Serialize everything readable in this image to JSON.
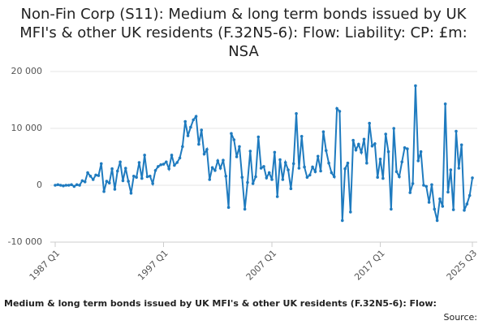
{
  "chart_data": {
    "type": "line",
    "title": "Non-Fin Corp (S11): Medium & long term bonds issued by UK MFI's & other UK residents (F.32N5-6): Flow: Liability: CP: £m: NSA",
    "footer": "Medium & long term bonds issued by UK MFI's & other UK residents (F.32N5-6): Flow:",
    "source": "Source:",
    "categories": [
      "1987 Q1",
      null,
      null,
      null,
      null,
      null,
      null,
      null,
      null,
      null,
      null,
      null,
      null,
      null,
      null,
      null,
      null,
      null,
      null,
      null,
      null,
      null,
      null,
      null,
      null,
      null,
      null,
      null,
      null,
      null,
      null,
      null,
      null,
      null,
      null,
      null,
      null,
      null,
      null,
      null,
      "1997 Q1",
      null,
      null,
      null,
      null,
      null,
      null,
      null,
      null,
      null,
      null,
      null,
      null,
      null,
      null,
      null,
      null,
      null,
      null,
      null,
      null,
      null,
      null,
      null,
      null,
      null,
      null,
      null,
      null,
      null,
      null,
      null,
      null,
      null,
      null,
      null,
      null,
      null,
      null,
      null,
      "2007 Q1",
      null,
      null,
      null,
      null,
      null,
      null,
      null,
      null,
      null,
      null,
      null,
      null,
      null,
      null,
      null,
      null,
      null,
      null,
      null,
      null,
      null,
      null,
      null,
      null,
      null,
      null,
      null,
      null,
      null,
      null,
      null,
      null,
      null,
      null,
      null,
      null,
      null,
      null,
      null,
      "2017 Q1",
      null,
      null,
      null,
      null,
      null,
      null,
      null,
      null,
      null,
      null,
      null,
      null,
      null,
      null,
      null,
      null,
      null,
      null,
      null,
      null,
      null,
      null,
      null,
      null,
      null,
      null,
      null,
      null,
      null,
      null,
      null,
      null,
      null,
      "2025 Q3"
    ],
    "series": [
      {
        "name": "Medium & long term bonds issued by UK MFI's & other UK residents (F.32N5-6): Flow",
        "color": "#1f7bbf",
        "values": [
          0,
          100,
          0,
          -100,
          0,
          0,
          100,
          -200,
          100,
          0,
          800,
          600,
          2200,
          1600,
          1000,
          1800,
          1700,
          3800,
          -1100,
          700,
          400,
          2900,
          -700,
          2500,
          4100,
          800,
          3000,
          700,
          -1400,
          1600,
          1400,
          4000,
          1200,
          5300,
          1500,
          1600,
          300,
          2600,
          3300,
          3600,
          3700,
          4100,
          2900,
          5300,
          3500,
          4000,
          4800,
          6800,
          11200,
          8700,
          10200,
          11500,
          12100,
          7200,
          9700,
          5500,
          6300,
          1000,
          3100,
          2600,
          4300,
          3000,
          4400,
          1600,
          -3900,
          9100,
          8000,
          5000,
          6800,
          1400,
          -4200,
          500,
          6000,
          300,
          1500,
          8500,
          3000,
          3300,
          1300,
          2200,
          1000,
          5800,
          -2000,
          4500,
          1000,
          4000,
          2700,
          -600,
          3800,
          12600,
          3000,
          8600,
          3200,
          1400,
          1800,
          3200,
          2400,
          5100,
          2500,
          9400,
          6100,
          3900,
          2200,
          1500,
          13500,
          13000,
          -6200,
          2900,
          3900,
          -4700,
          7900,
          6200,
          7200,
          5800,
          8100,
          3900,
          10900,
          6900,
          7300,
          1400,
          4600,
          1200,
          9000,
          5900,
          -4200,
          10000,
          2400,
          1500,
          4100,
          6600,
          6400,
          -1300,
          300,
          17500,
          4300,
          5900,
          0,
          -200,
          -3000,
          100,
          -4200,
          -6200,
          -2400,
          -3700,
          14300,
          -1200,
          2700,
          -4300,
          9500,
          3000,
          7100,
          -4400,
          -3300,
          -1800,
          1300
        ]
      }
    ],
    "ylim": [
      -10000,
      20000
    ],
    "yticks": [
      {
        "value": -10000,
        "label": "-10 000"
      },
      0,
      {
        "value": 10000,
        "label": "10 000"
      },
      {
        "value": 20000,
        "label": "20 000"
      }
    ],
    "grid": true
  }
}
